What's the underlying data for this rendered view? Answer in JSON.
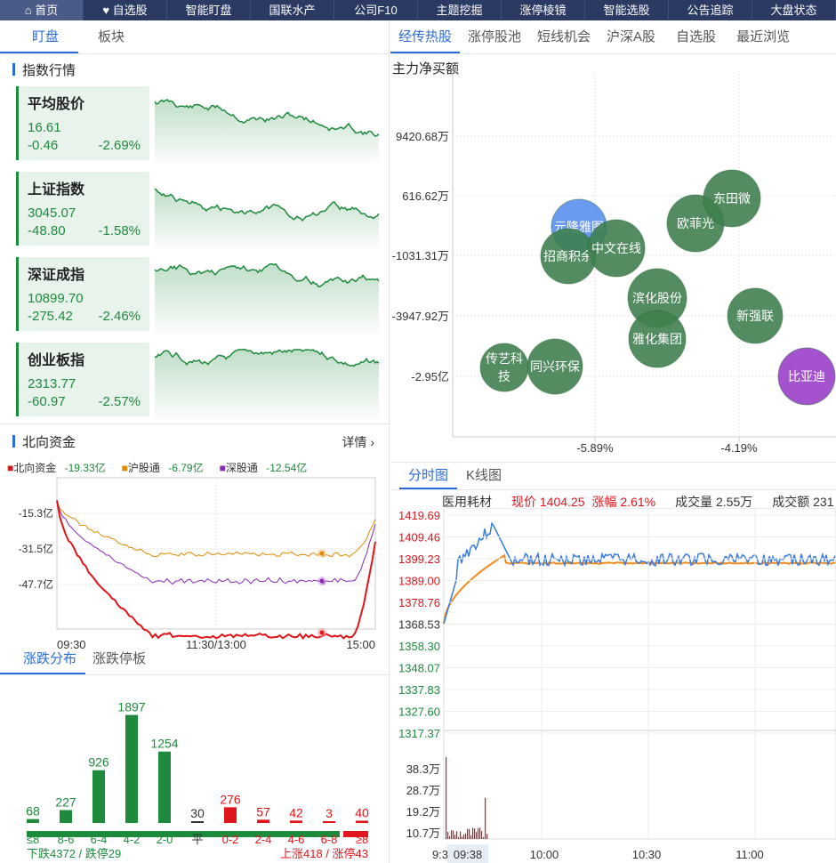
{
  "nav": [
    {
      "label": "首页",
      "icon": "home-icon"
    },
    {
      "label": "自选股",
      "icon": "heart-icon"
    },
    {
      "label": "智能盯盘"
    },
    {
      "label": "国联水产"
    },
    {
      "label": "公司F10"
    },
    {
      "label": "主题挖掘"
    },
    {
      "label": "涨停棱镜"
    },
    {
      "label": "智能选股"
    },
    {
      "label": "公告追踪"
    },
    {
      "label": "大盘状态"
    }
  ],
  "left_tabs": [
    "盯盘",
    "板块"
  ],
  "index_section_title": "指数行情",
  "indices": [
    {
      "name": "平均股价",
      "value": "16.61",
      "change": "-0.46",
      "pct": "-2.69%"
    },
    {
      "name": "上证指数",
      "value": "3045.07",
      "change": "-48.80",
      "pct": "-1.58%"
    },
    {
      "name": "深证成指",
      "value": "10899.70",
      "change": "-275.42",
      "pct": "-2.46%"
    },
    {
      "name": "创业板指",
      "value": "2313.77",
      "change": "-60.97",
      "pct": "-2.57%"
    }
  ],
  "north": {
    "title": "北向资金",
    "detail": "详情",
    "legend": [
      {
        "name": "北向资金",
        "value": "-19.33亿",
        "color": "#e0151b"
      },
      {
        "name": "沪股通",
        "value": "-6.79亿",
        "color": "#e08a00"
      },
      {
        "name": "深股通",
        "value": "-12.54亿",
        "color": "#8a2ab5"
      }
    ],
    "yticks": [
      "-15.3亿",
      "-31.5亿",
      "-47.7亿"
    ],
    "xticks": [
      "09:30",
      "11:30/13:00",
      "15:00"
    ]
  },
  "dist_tabs": [
    "涨跌分布",
    "涨跌停板"
  ],
  "distribution": {
    "categories": [
      "≤8",
      "8-6",
      "6-4",
      "4-2",
      "2-0",
      "平",
      "0-2",
      "2-4",
      "4-6",
      "6-8",
      "≥8"
    ],
    "values": [
      68,
      227,
      926,
      1897,
      1254,
      30,
      276,
      57,
      42,
      3,
      40
    ],
    "down_label": "下跌4372 / 跌停29",
    "up_label": "上涨418 / 涨停43"
  },
  "right_tabs": [
    "经传热股",
    "涨停股池",
    "短线机会",
    "沪深A股",
    "自选股",
    "最近浏览"
  ],
  "bubble": {
    "ylabel": "主力净买额",
    "yticks": [
      "9420.68万",
      "616.62万",
      "-1031.31万",
      "-3947.92万",
      "-2.95亿"
    ],
    "xticks": [
      "-5.89%",
      "-4.19%"
    ],
    "bubbles": [
      {
        "name": "元隆雅图",
        "color": "#5b8ff0"
      },
      {
        "name": "招商积余",
        "color": "#3f7f4f"
      },
      {
        "name": "中文在线",
        "color": "#3f7f4f"
      },
      {
        "name": "欧菲光",
        "color": "#3f7f4f"
      },
      {
        "name": "东田微",
        "color": "#3f7f4f"
      },
      {
        "name": "滨化股份",
        "color": "#3f7f4f"
      },
      {
        "name": "雅化集团",
        "color": "#3f7f4f"
      },
      {
        "name": "新强联",
        "color": "#3f7f4f"
      },
      {
        "name": "传艺科技",
        "color": "#3f7f4f"
      },
      {
        "name": "同兴环保",
        "color": "#3f7f4f"
      },
      {
        "name": "比亚迪",
        "color": "#9a3fc9"
      }
    ]
  },
  "intraday_tabs": [
    "分时图",
    "K线图"
  ],
  "intraday": {
    "name": "医用耗材",
    "price_label": "现价 1404.25",
    "pct_label": "涨幅 2.61%",
    "vol_label": "成交量 2.55万",
    "amt_label": "成交额 231",
    "yticks": [
      "1419.69",
      "1409.46",
      "1399.23",
      "1389.00",
      "1378.76",
      "1368.53",
      "1358.30",
      "1348.07",
      "1337.83",
      "1327.60",
      "1317.37"
    ],
    "vol_ticks": [
      "38.3万",
      "28.7万",
      "19.2万",
      "10.7万"
    ],
    "xticks": [
      "9:3",
      "09:38",
      "10:00",
      "10:30",
      "11:00"
    ]
  }
}
